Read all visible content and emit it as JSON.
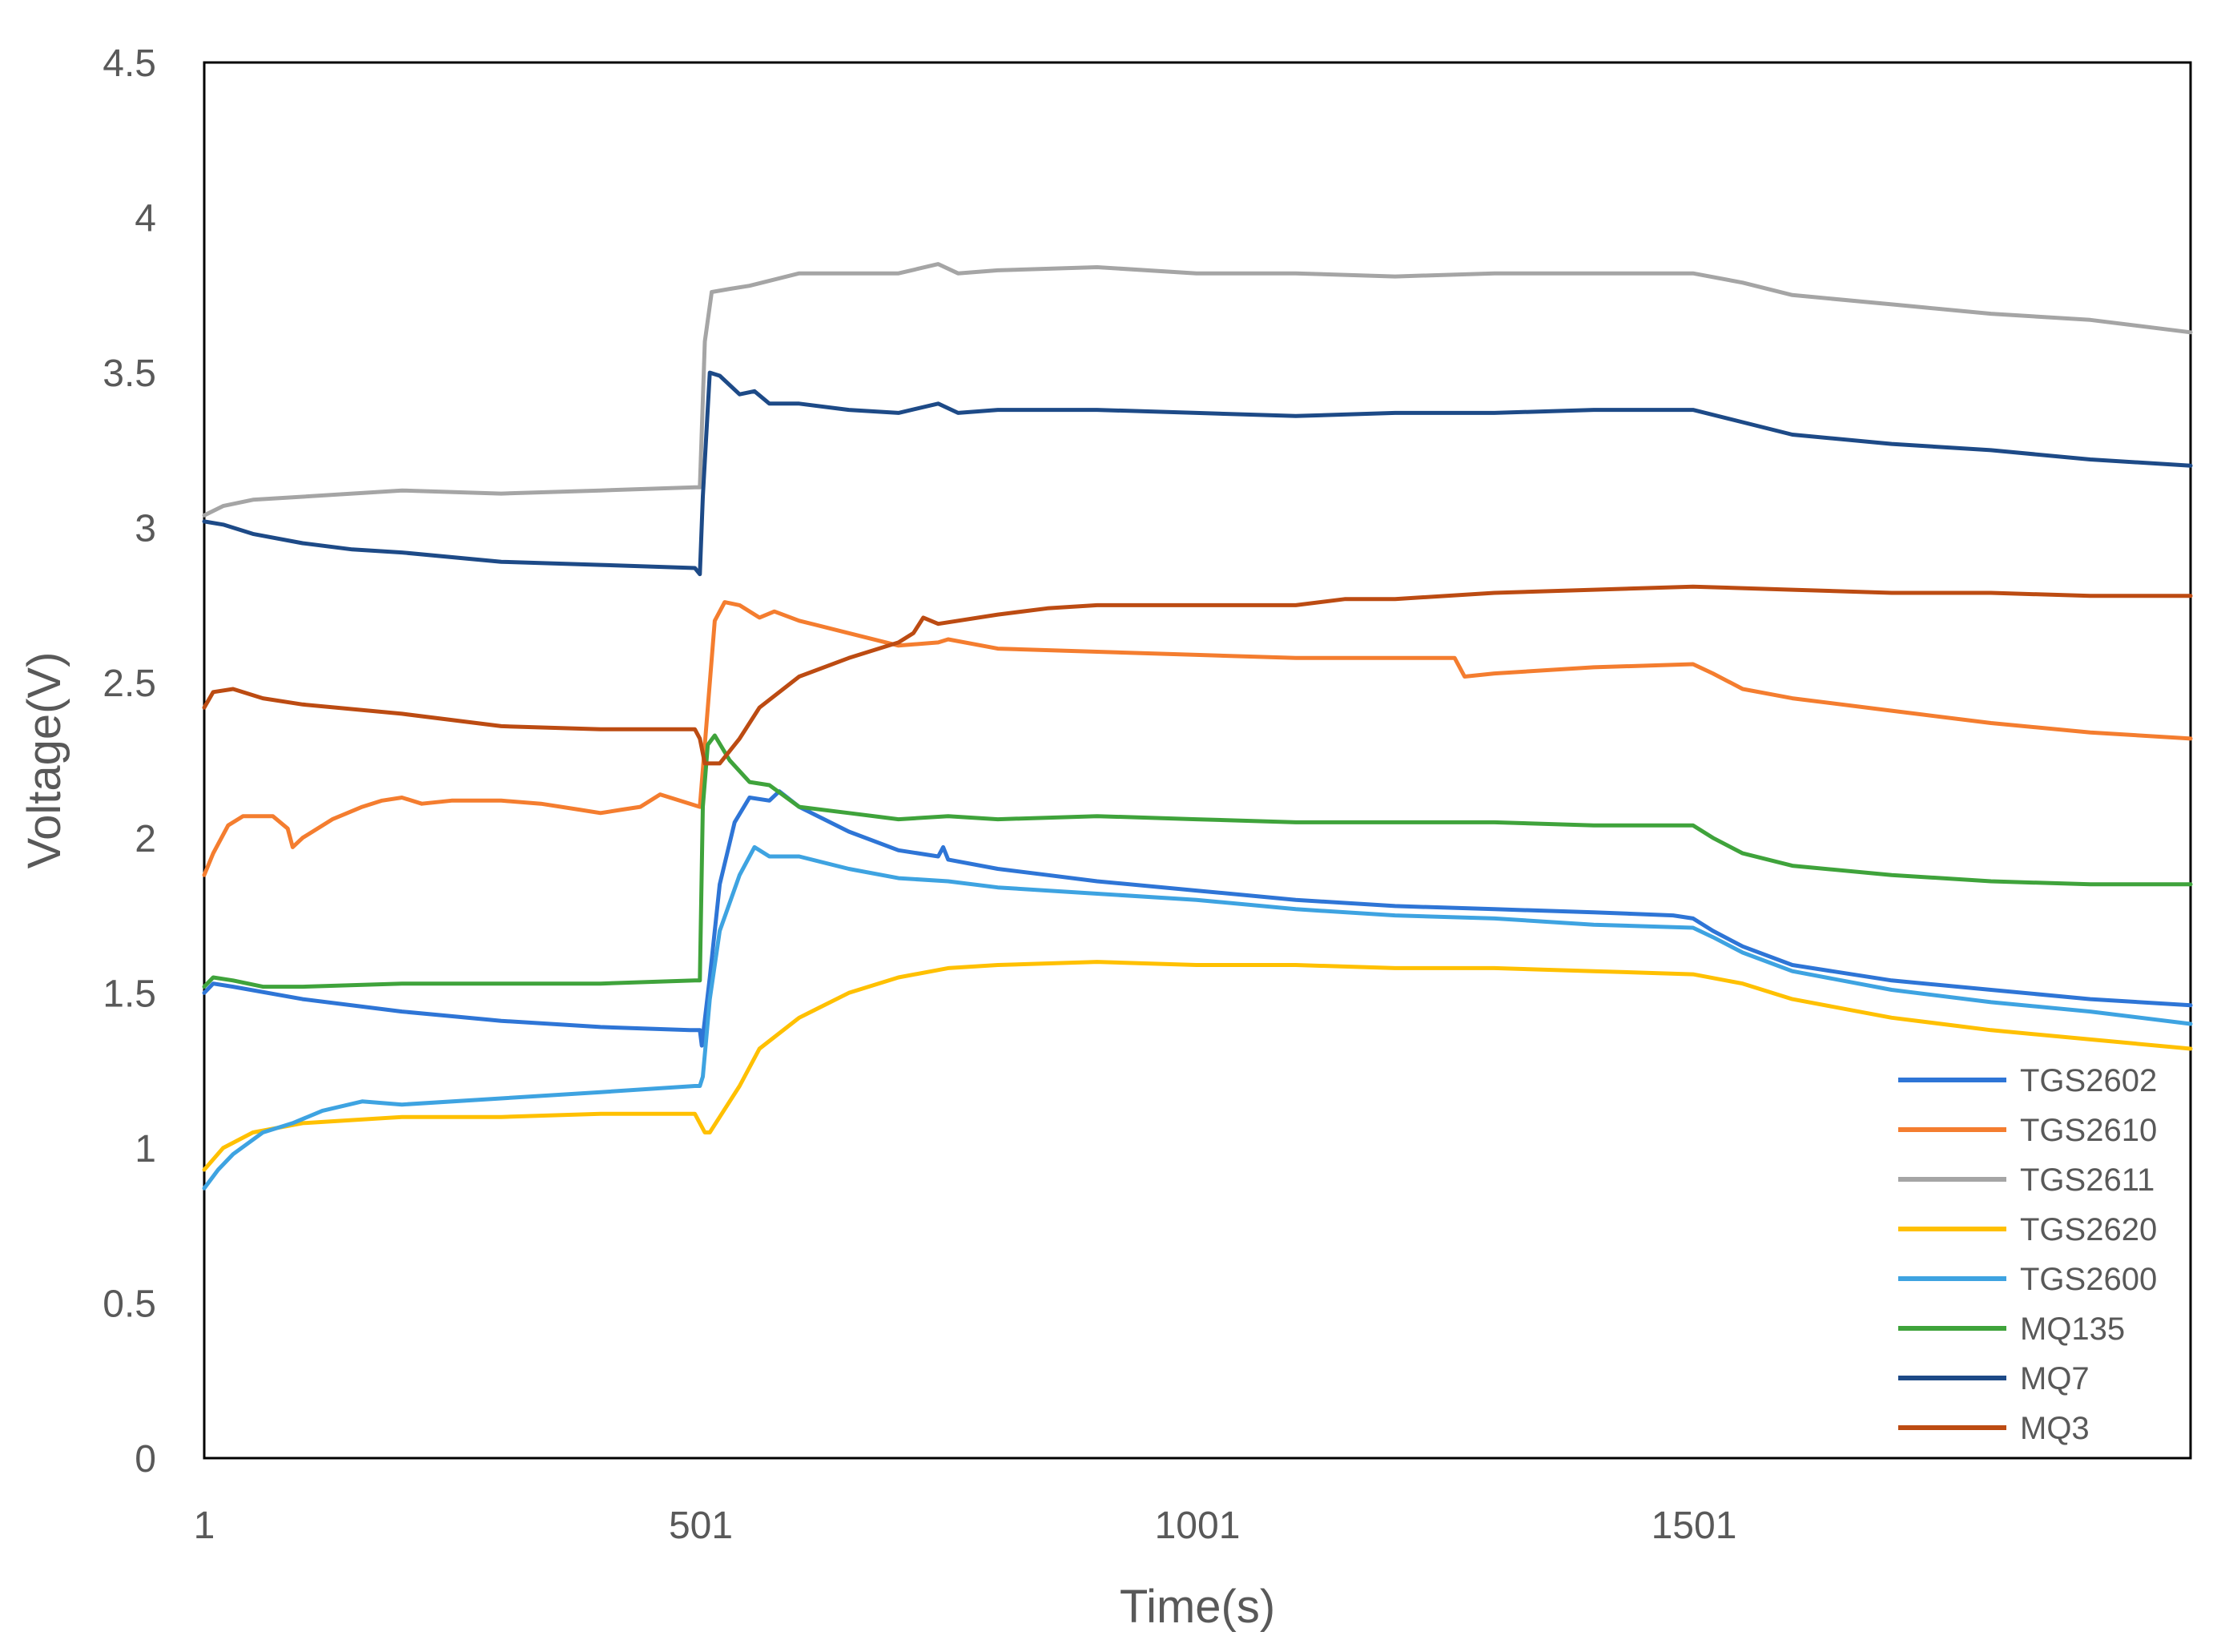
{
  "chart_data": {
    "type": "line",
    "xlabel": "Time(s)",
    "ylabel": "Voltage(V)",
    "xlim": [
      1,
      2001
    ],
    "ylim": [
      0,
      4.5
    ],
    "x_ticks": [
      "1",
      "501",
      "1001",
      "1501"
    ],
    "x_tick_values": [
      1,
      501,
      1001,
      1501
    ],
    "y_ticks": [
      "0",
      "0.5",
      "1",
      "1.5",
      "2",
      "2.5",
      "3",
      "3.5",
      "4",
      "4.5"
    ],
    "y_tick_values": [
      0,
      0.5,
      1,
      1.5,
      2,
      2.5,
      3,
      3.5,
      4,
      4.5
    ],
    "grid": false,
    "legend_position": "bottom-right",
    "series": [
      {
        "name": "TGS2602",
        "color": "#2e75d6",
        "points": [
          [
            1,
            1.5
          ],
          [
            10,
            1.53
          ],
          [
            30,
            1.52
          ],
          [
            100,
            1.48
          ],
          [
            200,
            1.44
          ],
          [
            300,
            1.41
          ],
          [
            400,
            1.39
          ],
          [
            490,
            1.38
          ],
          [
            500,
            1.38
          ],
          [
            502,
            1.33
          ],
          [
            510,
            1.55
          ],
          [
            520,
            1.85
          ],
          [
            535,
            2.05
          ],
          [
            550,
            2.13
          ],
          [
            570,
            2.12
          ],
          [
            580,
            2.15
          ],
          [
            600,
            2.1
          ],
          [
            650,
            2.02
          ],
          [
            700,
            1.96
          ],
          [
            740,
            1.94
          ],
          [
            745,
            1.97
          ],
          [
            750,
            1.93
          ],
          [
            800,
            1.9
          ],
          [
            850,
            1.88
          ],
          [
            900,
            1.86
          ],
          [
            1000,
            1.83
          ],
          [
            1100,
            1.8
          ],
          [
            1200,
            1.78
          ],
          [
            1300,
            1.77
          ],
          [
            1400,
            1.76
          ],
          [
            1480,
            1.75
          ],
          [
            1500,
            1.74
          ],
          [
            1520,
            1.7
          ],
          [
            1550,
            1.65
          ],
          [
            1600,
            1.59
          ],
          [
            1700,
            1.54
          ],
          [
            1800,
            1.51
          ],
          [
            1900,
            1.48
          ],
          [
            2001,
            1.46
          ]
        ]
      },
      {
        "name": "TGS2610",
        "color": "#f47d2f",
        "points": [
          [
            1,
            1.88
          ],
          [
            10,
            1.95
          ],
          [
            25,
            2.04
          ],
          [
            40,
            2.07
          ],
          [
            70,
            2.07
          ],
          [
            85,
            2.03
          ],
          [
            90,
            1.97
          ],
          [
            100,
            2.0
          ],
          [
            130,
            2.06
          ],
          [
            160,
            2.1
          ],
          [
            180,
            2.12
          ],
          [
            200,
            2.13
          ],
          [
            220,
            2.11
          ],
          [
            250,
            2.12
          ],
          [
            300,
            2.12
          ],
          [
            340,
            2.11
          ],
          [
            380,
            2.09
          ],
          [
            400,
            2.08
          ],
          [
            420,
            2.09
          ],
          [
            440,
            2.1
          ],
          [
            460,
            2.14
          ],
          [
            490,
            2.11
          ],
          [
            500,
            2.1
          ],
          [
            505,
            2.3
          ],
          [
            515,
            2.7
          ],
          [
            525,
            2.76
          ],
          [
            540,
            2.75
          ],
          [
            560,
            2.71
          ],
          [
            575,
            2.73
          ],
          [
            600,
            2.7
          ],
          [
            650,
            2.66
          ],
          [
            700,
            2.62
          ],
          [
            740,
            2.63
          ],
          [
            750,
            2.64
          ],
          [
            800,
            2.61
          ],
          [
            900,
            2.6
          ],
          [
            1000,
            2.59
          ],
          [
            1100,
            2.58
          ],
          [
            1200,
            2.58
          ],
          [
            1260,
            2.58
          ],
          [
            1270,
            2.52
          ],
          [
            1300,
            2.53
          ],
          [
            1400,
            2.55
          ],
          [
            1500,
            2.56
          ],
          [
            1520,
            2.53
          ],
          [
            1550,
            2.48
          ],
          [
            1600,
            2.45
          ],
          [
            1700,
            2.41
          ],
          [
            1800,
            2.37
          ],
          [
            1900,
            2.34
          ],
          [
            2001,
            2.32
          ]
        ]
      },
      {
        "name": "TGS2611",
        "color": "#a5a5a5",
        "points": [
          [
            1,
            3.04
          ],
          [
            20,
            3.07
          ],
          [
            50,
            3.09
          ],
          [
            100,
            3.1
          ],
          [
            200,
            3.12
          ],
          [
            300,
            3.11
          ],
          [
            400,
            3.12
          ],
          [
            495,
            3.13
          ],
          [
            500,
            3.13
          ],
          [
            505,
            3.6
          ],
          [
            512,
            3.76
          ],
          [
            530,
            3.77
          ],
          [
            550,
            3.78
          ],
          [
            600,
            3.82
          ],
          [
            700,
            3.82
          ],
          [
            740,
            3.85
          ],
          [
            760,
            3.82
          ],
          [
            800,
            3.83
          ],
          [
            900,
            3.84
          ],
          [
            1000,
            3.82
          ],
          [
            1100,
            3.82
          ],
          [
            1200,
            3.81
          ],
          [
            1300,
            3.82
          ],
          [
            1400,
            3.82
          ],
          [
            1500,
            3.82
          ],
          [
            1550,
            3.79
          ],
          [
            1600,
            3.75
          ],
          [
            1700,
            3.72
          ],
          [
            1800,
            3.69
          ],
          [
            1900,
            3.67
          ],
          [
            2001,
            3.63
          ]
        ]
      },
      {
        "name": "TGS2620",
        "color": "#ffc000",
        "points": [
          [
            1,
            0.93
          ],
          [
            20,
            1.0
          ],
          [
            50,
            1.05
          ],
          [
            100,
            1.08
          ],
          [
            200,
            1.1
          ],
          [
            300,
            1.1
          ],
          [
            400,
            1.11
          ],
          [
            495,
            1.11
          ],
          [
            505,
            1.05
          ],
          [
            510,
            1.05
          ],
          [
            520,
            1.1
          ],
          [
            540,
            1.2
          ],
          [
            560,
            1.32
          ],
          [
            600,
            1.42
          ],
          [
            650,
            1.5
          ],
          [
            700,
            1.55
          ],
          [
            750,
            1.58
          ],
          [
            800,
            1.59
          ],
          [
            900,
            1.6
          ],
          [
            1000,
            1.59
          ],
          [
            1100,
            1.59
          ],
          [
            1200,
            1.58
          ],
          [
            1300,
            1.58
          ],
          [
            1400,
            1.57
          ],
          [
            1500,
            1.56
          ],
          [
            1550,
            1.53
          ],
          [
            1600,
            1.48
          ],
          [
            1700,
            1.42
          ],
          [
            1800,
            1.38
          ],
          [
            1900,
            1.35
          ],
          [
            2001,
            1.32
          ]
        ]
      },
      {
        "name": "TGS2600",
        "color": "#3ea3e1",
        "points": [
          [
            1,
            0.87
          ],
          [
            15,
            0.93
          ],
          [
            30,
            0.98
          ],
          [
            60,
            1.05
          ],
          [
            90,
            1.08
          ],
          [
            120,
            1.12
          ],
          [
            160,
            1.15
          ],
          [
            200,
            1.14
          ],
          [
            300,
            1.16
          ],
          [
            400,
            1.18
          ],
          [
            495,
            1.2
          ],
          [
            500,
            1.2
          ],
          [
            503,
            1.23
          ],
          [
            510,
            1.48
          ],
          [
            520,
            1.7
          ],
          [
            540,
            1.88
          ],
          [
            555,
            1.97
          ],
          [
            570,
            1.94
          ],
          [
            600,
            1.94
          ],
          [
            650,
            1.9
          ],
          [
            700,
            1.87
          ],
          [
            750,
            1.86
          ],
          [
            800,
            1.84
          ],
          [
            900,
            1.82
          ],
          [
            1000,
            1.8
          ],
          [
            1100,
            1.77
          ],
          [
            1200,
            1.75
          ],
          [
            1300,
            1.74
          ],
          [
            1400,
            1.72
          ],
          [
            1500,
            1.71
          ],
          [
            1520,
            1.68
          ],
          [
            1550,
            1.63
          ],
          [
            1600,
            1.57
          ],
          [
            1700,
            1.51
          ],
          [
            1800,
            1.47
          ],
          [
            1900,
            1.44
          ],
          [
            2001,
            1.4
          ]
        ]
      },
      {
        "name": "MQ135",
        "color": "#3fa33b",
        "points": [
          [
            1,
            1.52
          ],
          [
            10,
            1.55
          ],
          [
            30,
            1.54
          ],
          [
            60,
            1.52
          ],
          [
            100,
            1.52
          ],
          [
            200,
            1.53
          ],
          [
            300,
            1.53
          ],
          [
            400,
            1.53
          ],
          [
            495,
            1.54
          ],
          [
            500,
            1.54
          ],
          [
            503,
            2.1
          ],
          [
            508,
            2.3
          ],
          [
            515,
            2.33
          ],
          [
            530,
            2.25
          ],
          [
            550,
            2.18
          ],
          [
            570,
            2.17
          ],
          [
            600,
            2.1
          ],
          [
            650,
            2.08
          ],
          [
            700,
            2.06
          ],
          [
            750,
            2.07
          ],
          [
            800,
            2.06
          ],
          [
            900,
            2.07
          ],
          [
            1000,
            2.06
          ],
          [
            1100,
            2.05
          ],
          [
            1200,
            2.05
          ],
          [
            1300,
            2.05
          ],
          [
            1400,
            2.04
          ],
          [
            1500,
            2.04
          ],
          [
            1520,
            2.0
          ],
          [
            1550,
            1.95
          ],
          [
            1600,
            1.91
          ],
          [
            1700,
            1.88
          ],
          [
            1800,
            1.86
          ],
          [
            1900,
            1.85
          ],
          [
            2001,
            1.85
          ]
        ]
      },
      {
        "name": "MQ7",
        "color": "#1d4a87",
        "points": [
          [
            1,
            3.02
          ],
          [
            20,
            3.01
          ],
          [
            50,
            2.98
          ],
          [
            100,
            2.95
          ],
          [
            150,
            2.93
          ],
          [
            200,
            2.92
          ],
          [
            300,
            2.89
          ],
          [
            400,
            2.88
          ],
          [
            495,
            2.87
          ],
          [
            500,
            2.85
          ],
          [
            503,
            3.1
          ],
          [
            510,
            3.5
          ],
          [
            520,
            3.49
          ],
          [
            540,
            3.43
          ],
          [
            555,
            3.44
          ],
          [
            570,
            3.4
          ],
          [
            600,
            3.4
          ],
          [
            650,
            3.38
          ],
          [
            700,
            3.37
          ],
          [
            740,
            3.4
          ],
          [
            760,
            3.37
          ],
          [
            800,
            3.38
          ],
          [
            900,
            3.38
          ],
          [
            1000,
            3.37
          ],
          [
            1100,
            3.36
          ],
          [
            1200,
            3.37
          ],
          [
            1300,
            3.37
          ],
          [
            1400,
            3.38
          ],
          [
            1500,
            3.38
          ],
          [
            1550,
            3.34
          ],
          [
            1600,
            3.3
          ],
          [
            1700,
            3.27
          ],
          [
            1800,
            3.25
          ],
          [
            1900,
            3.22
          ],
          [
            2001,
            3.2
          ]
        ]
      },
      {
        "name": "MQ3",
        "color": "#bc4b12",
        "points": [
          [
            1,
            2.42
          ],
          [
            10,
            2.47
          ],
          [
            30,
            2.48
          ],
          [
            60,
            2.45
          ],
          [
            100,
            2.43
          ],
          [
            200,
            2.4
          ],
          [
            300,
            2.36
          ],
          [
            400,
            2.35
          ],
          [
            495,
            2.35
          ],
          [
            500,
            2.32
          ],
          [
            505,
            2.24
          ],
          [
            520,
            2.24
          ],
          [
            540,
            2.32
          ],
          [
            560,
            2.42
          ],
          [
            600,
            2.52
          ],
          [
            650,
            2.58
          ],
          [
            700,
            2.63
          ],
          [
            715,
            2.66
          ],
          [
            725,
            2.71
          ],
          [
            740,
            2.69
          ],
          [
            800,
            2.72
          ],
          [
            850,
            2.74
          ],
          [
            900,
            2.75
          ],
          [
            1000,
            2.75
          ],
          [
            1100,
            2.75
          ],
          [
            1150,
            2.77
          ],
          [
            1200,
            2.77
          ],
          [
            1300,
            2.79
          ],
          [
            1400,
            2.8
          ],
          [
            1500,
            2.81
          ],
          [
            1600,
            2.8
          ],
          [
            1700,
            2.79
          ],
          [
            1800,
            2.79
          ],
          [
            1900,
            2.78
          ],
          [
            2001,
            2.78
          ]
        ]
      }
    ]
  }
}
